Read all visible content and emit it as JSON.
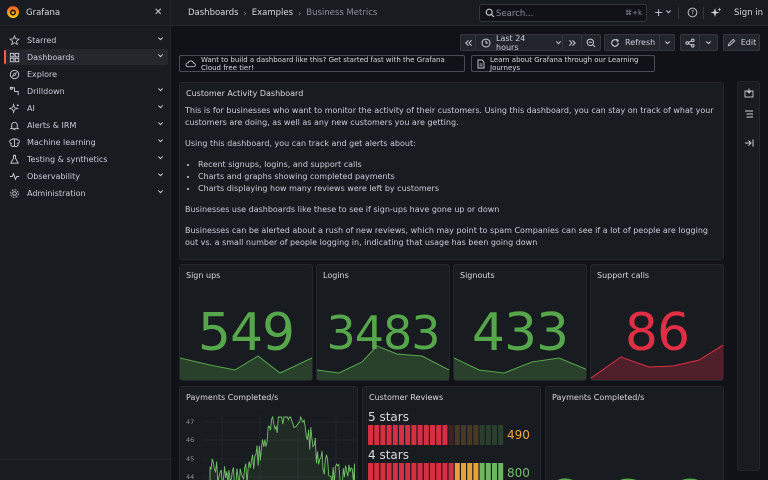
{
  "app": {
    "title": "Grafana"
  },
  "breadcrumbs": [
    "Dashboards",
    "Examples",
    "Business Metrics"
  ],
  "search": {
    "placeholder": "Search...",
    "shortcut": "⌘+k"
  },
  "header": {
    "sign_in": "Sign in"
  },
  "sidebar": {
    "items": [
      {
        "label": "Starred",
        "icon": "star-icon",
        "has_chevron": true
      },
      {
        "label": "Dashboards",
        "icon": "dashboards-icon",
        "has_chevron": true,
        "active": true
      },
      {
        "label": "Explore",
        "icon": "compass-icon",
        "has_chevron": false
      },
      {
        "label": "Drilldown",
        "icon": "drilldown-icon",
        "has_chevron": true
      },
      {
        "label": "AI",
        "icon": "ai-icon",
        "has_chevron": true
      },
      {
        "label": "Alerts & IRM",
        "icon": "bell-icon",
        "has_chevron": true
      },
      {
        "label": "Machine learning",
        "icon": "brain-icon",
        "has_chevron": true
      },
      {
        "label": "Testing & synthetics",
        "icon": "flask-icon",
        "has_chevron": true
      },
      {
        "label": "Observability",
        "icon": "heartbeat-icon",
        "has_chevron": true
      },
      {
        "label": "Administration",
        "icon": "cog-icon",
        "has_chevron": true
      }
    ]
  },
  "toolbar": {
    "time_range": "Last 24 hours",
    "refresh": "Refresh",
    "edit": "Edit"
  },
  "promos": [
    "Want to build a dashboard like this? Get started fast with the Grafana Cloud free tier!",
    "Learn about Grafana through our Learning Journeys"
  ],
  "text_panel": {
    "title": "Customer Activity Dashboard",
    "p1": "This is for businesses who want to monitor the activity of their customers. Using this dashboard, you can stay on track of what your customers are doing, as well as any new customers you are getting.",
    "p2": "Using this dashboard, you can track and get alerts about:",
    "bullets": [
      "Recent signups, logins, and support calls",
      "Charts and graphs showing completed payments",
      "Charts displaying how many reviews were left by customers"
    ],
    "p3": "Businesses use dashboards like these to see if sign-ups have gone up or down",
    "p4": "Businesses can be alerted about a rush of new reviews, which may point to spam Companies can see if a lot of people are logging out vs. a small number of people logging in, indicating that usage has been going down"
  },
  "stats": [
    {
      "title": "Sign ups",
      "value": "549",
      "color": "#56a64b"
    },
    {
      "title": "Logins",
      "value": "3483",
      "color": "#56a64b"
    },
    {
      "title": "Signouts",
      "value": "433",
      "color": "#56a64b"
    },
    {
      "title": "Support calls",
      "value": "86",
      "color": "#e02f44"
    }
  ],
  "payments": {
    "title": "Payments Completed/s",
    "y_ticks": [
      "47",
      "46",
      "45",
      "44"
    ]
  },
  "reviews": {
    "title": "Customer Reviews",
    "rows": [
      {
        "label": "5 stars",
        "value": "490",
        "fill": 0.6
      },
      {
        "label": "4 stars",
        "value": "800",
        "fill": 0.98
      }
    ]
  },
  "payments2": {
    "title": "Payments Completed/s"
  }
}
